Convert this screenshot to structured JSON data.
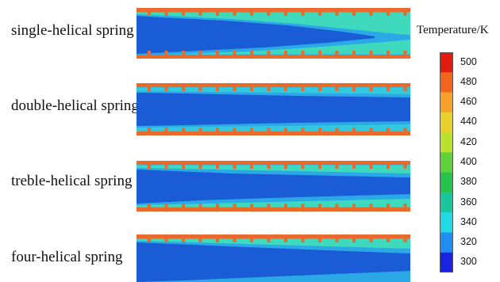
{
  "panels": [
    {
      "label": "single-helical spring"
    },
    {
      "label": "double-helical spring"
    },
    {
      "label": "treble-helical spring"
    },
    {
      "label": "four-helical spring"
    }
  ],
  "legend": {
    "title": "Temperature/K",
    "ticks": [
      "500",
      "480",
      "460",
      "440",
      "420",
      "400",
      "380",
      "360",
      "340",
      "320",
      "300"
    ],
    "colors": [
      "#e21b0f",
      "#f2651c",
      "#f6a12a",
      "#e9d12b",
      "#b9e02c",
      "#5fd13a",
      "#26c24d",
      "#19c79f",
      "#22d9e3",
      "#1f8ef0",
      "#1a24e0"
    ]
  },
  "colors": {
    "wall": "#e86a2c",
    "core": "#1a5bd6",
    "mid": "#29b8e6",
    "warm": "#3fd6b4"
  }
}
